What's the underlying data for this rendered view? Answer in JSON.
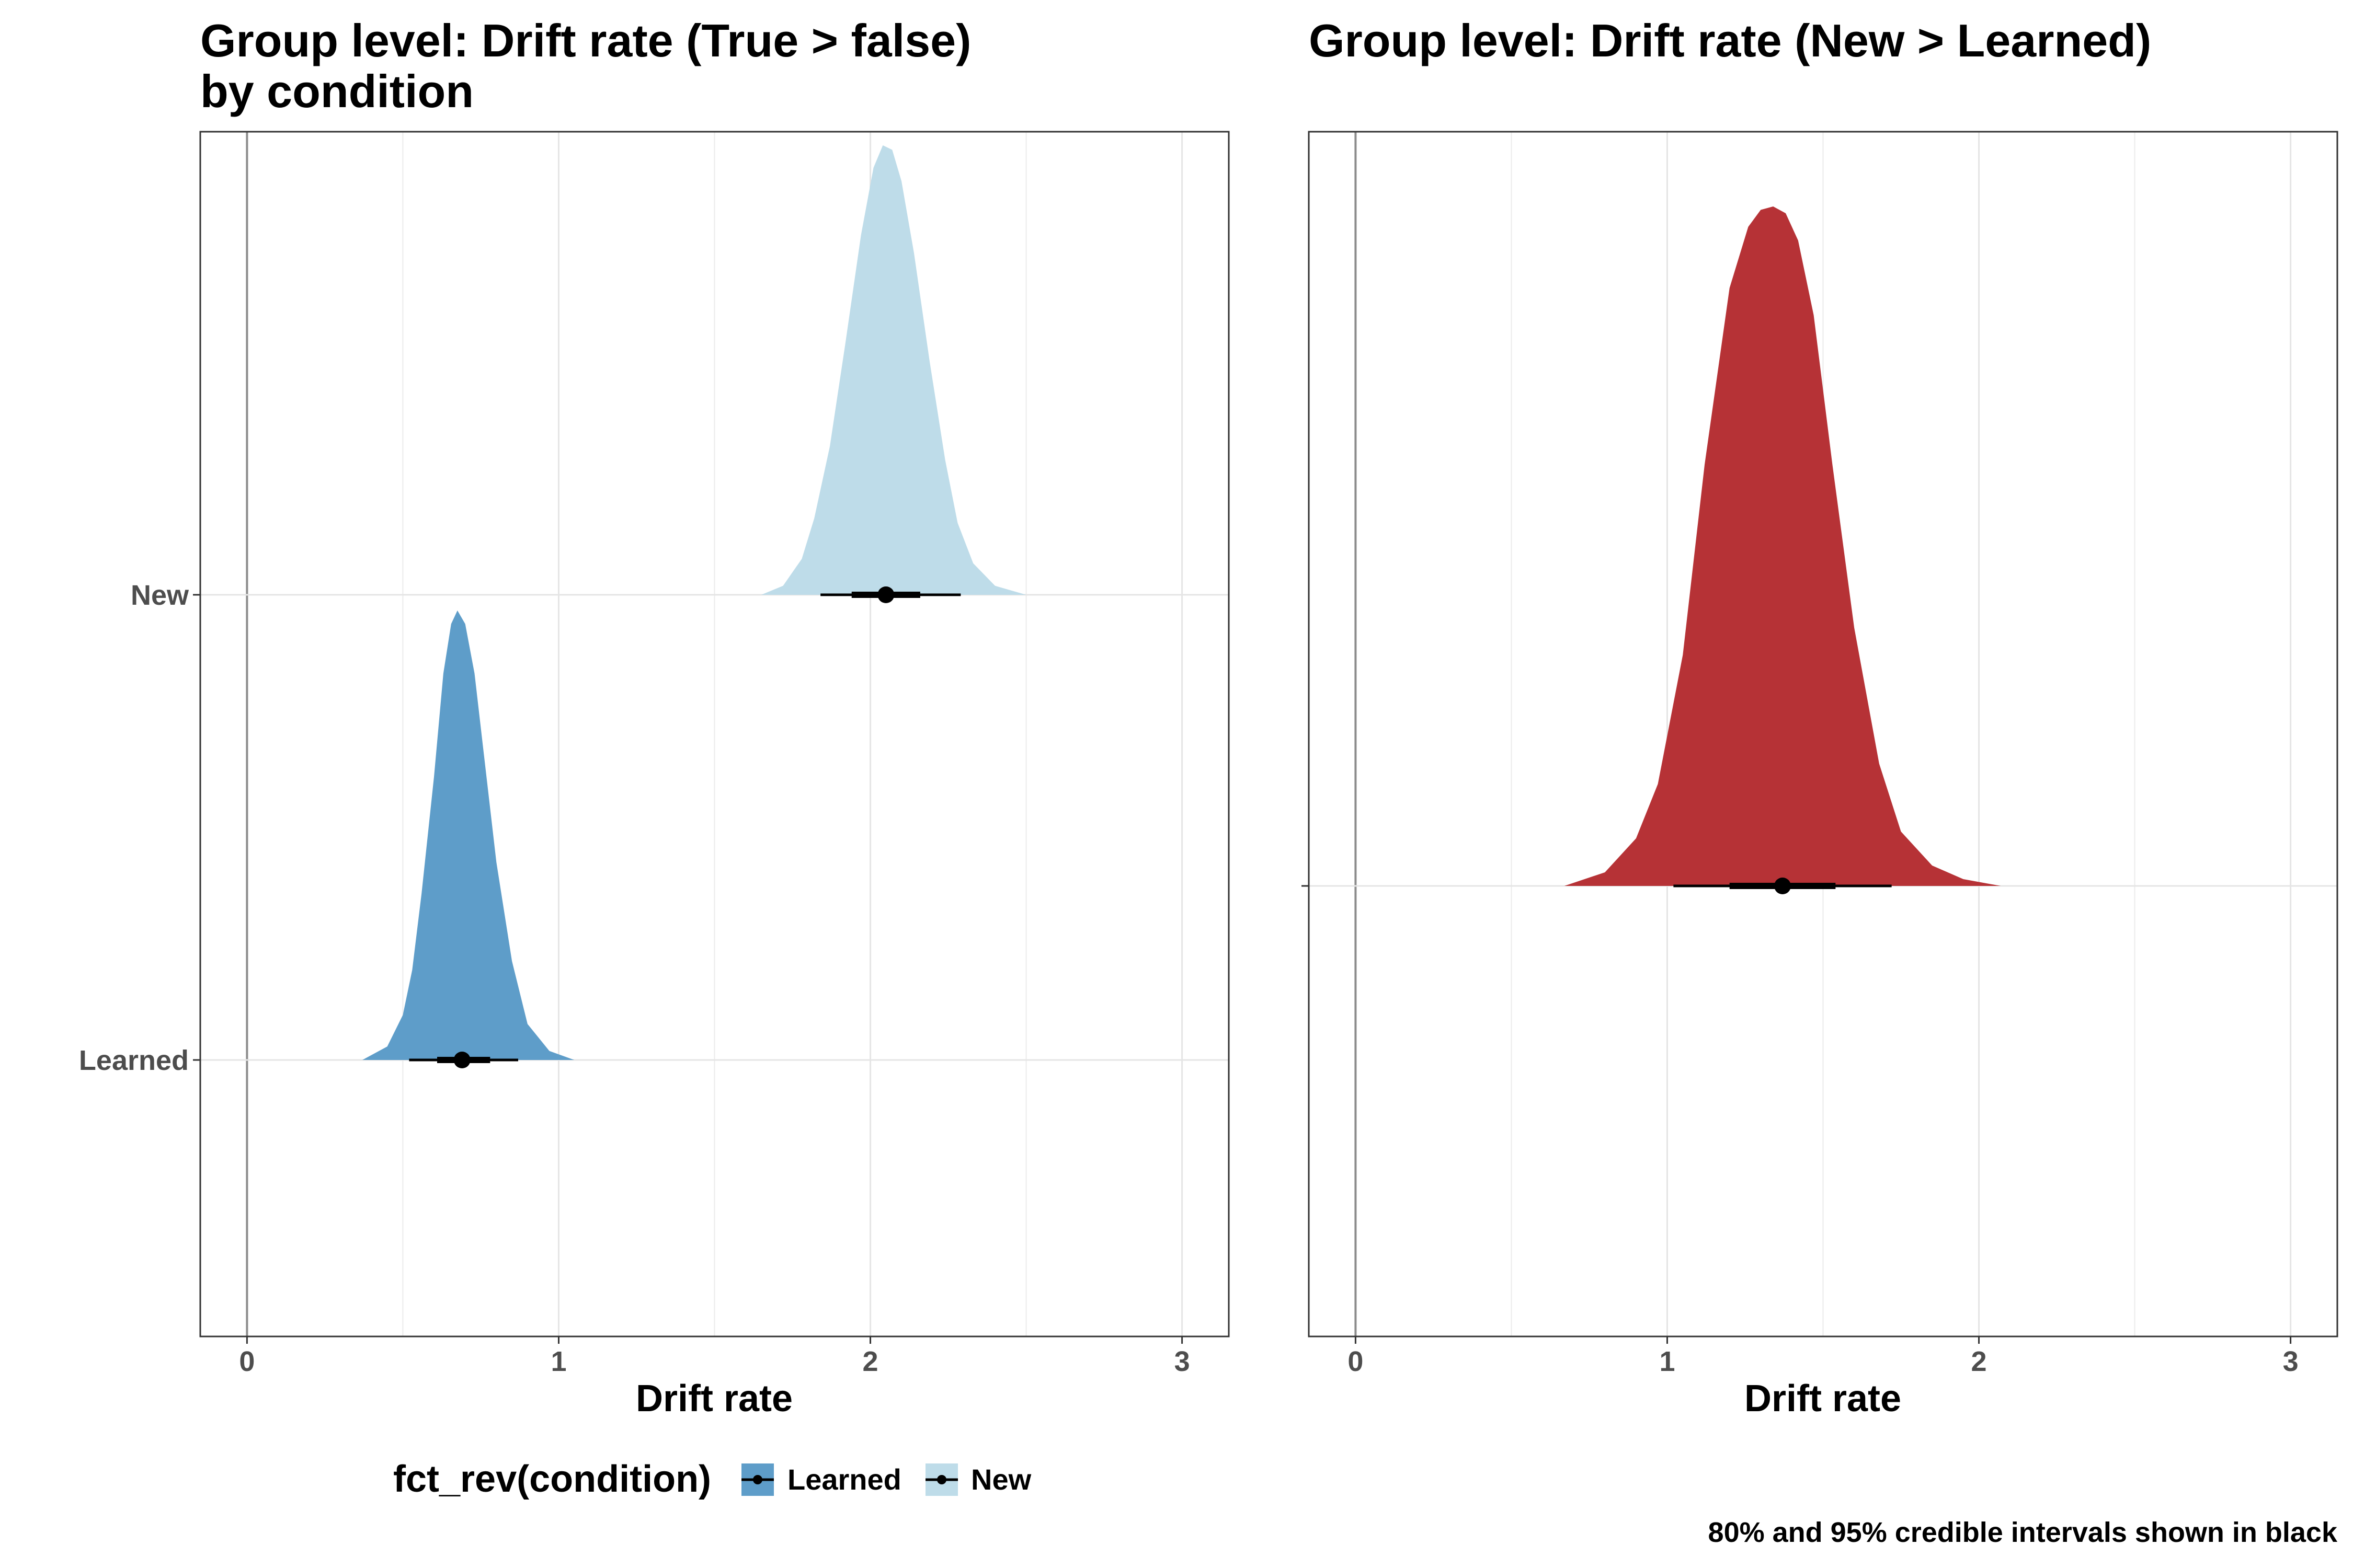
{
  "chart_data": [
    {
      "type": "density",
      "title_line1": "Group level: Drift rate (True > false)",
      "title_line2": "by condition",
      "xlabel": "Drift rate",
      "ylabel": "",
      "xlim": [
        -0.15,
        3.15
      ],
      "x_ticks": [
        "0",
        "1",
        "2",
        "3"
      ],
      "y_categories": [
        "Learned",
        "New"
      ],
      "grid": true,
      "legend": {
        "title": "fct_rev(condition)",
        "position": "bottom",
        "entries": [
          "Learned",
          "New"
        ]
      },
      "series": [
        {
          "name": "Learned",
          "color": "#5e9dc9",
          "x": [
            0.37,
            0.45,
            0.5,
            0.53,
            0.56,
            0.6,
            0.63,
            0.655,
            0.675,
            0.7,
            0.73,
            0.76,
            0.8,
            0.85,
            0.9,
            0.97,
            1.05
          ],
          "density": [
            0.0,
            0.03,
            0.1,
            0.2,
            0.37,
            0.63,
            0.86,
            0.97,
            1.0,
            0.97,
            0.86,
            0.68,
            0.44,
            0.22,
            0.08,
            0.02,
            0.0
          ],
          "median": 0.69,
          "interval_80": [
            0.61,
            0.78
          ],
          "interval_95": [
            0.52,
            0.87
          ]
        },
        {
          "name": "New",
          "color": "#bedce9",
          "x": [
            1.65,
            1.72,
            1.78,
            1.82,
            1.87,
            1.92,
            1.97,
            2.01,
            2.04,
            2.07,
            2.1,
            2.14,
            2.19,
            2.24,
            2.28,
            2.33,
            2.4,
            2.5
          ],
          "density": [
            0.0,
            0.02,
            0.08,
            0.17,
            0.33,
            0.56,
            0.8,
            0.95,
            1.0,
            0.99,
            0.92,
            0.76,
            0.52,
            0.3,
            0.16,
            0.07,
            0.02,
            0.0
          ],
          "median": 2.05,
          "interval_80": [
            1.94,
            2.16
          ],
          "interval_95": [
            1.84,
            2.29
          ]
        }
      ]
    },
    {
      "type": "density",
      "title": "Group level: Drift rate (New > Learned)",
      "xlabel": "Drift rate",
      "ylabel": "",
      "xlim": [
        -0.15,
        3.15
      ],
      "x_ticks": [
        "0",
        "1",
        "2",
        "3"
      ],
      "grid": true,
      "series": [
        {
          "name": "",
          "color": "#b63236",
          "x": [
            0.67,
            0.8,
            0.9,
            0.97,
            1.05,
            1.12,
            1.2,
            1.26,
            1.3,
            1.34,
            1.38,
            1.42,
            1.47,
            1.53,
            1.6,
            1.68,
            1.75,
            1.85,
            1.95,
            2.07
          ],
          "density": [
            0.0,
            0.02,
            0.07,
            0.15,
            0.34,
            0.62,
            0.88,
            0.97,
            0.995,
            1.0,
            0.99,
            0.95,
            0.84,
            0.62,
            0.38,
            0.18,
            0.08,
            0.03,
            0.01,
            0.0
          ],
          "median": 1.37,
          "interval_80": [
            1.2,
            1.54
          ],
          "interval_95": [
            1.02,
            1.72
          ]
        }
      ]
    }
  ],
  "caption": "80% and 95% credible intervals shown in black"
}
